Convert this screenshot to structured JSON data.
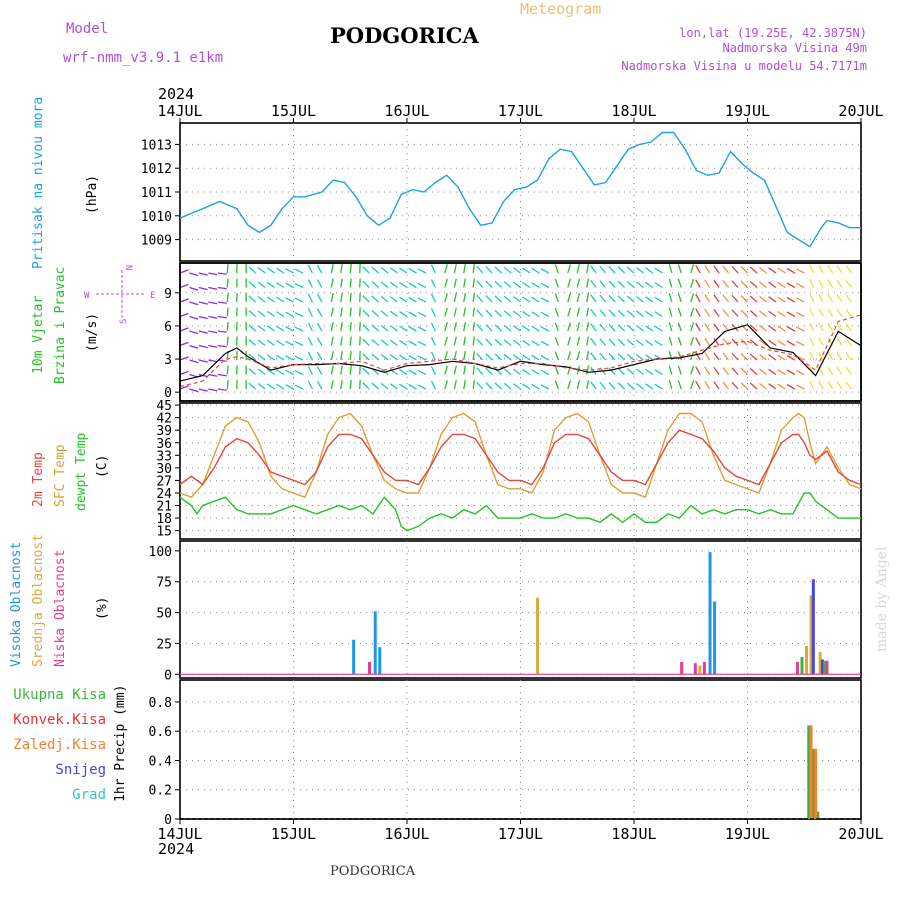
{
  "header": {
    "model_label": "Model",
    "model_value": "wrf-nmm_v3.9.1  e1km",
    "station": "PODGORICA",
    "product": "Meteogram",
    "coords": "lon,lat (19.25E, 42.3875N)",
    "elevation": "Nadmorska Visina 49m",
    "model_elevation": "Nadmorska Visina u modelu 54.7171m",
    "year": "2024",
    "footer_station": "PODGORICA",
    "credit": "made by Angel"
  },
  "colors": {
    "pressure": "#1ea0e6",
    "temp2m": "#e8453c",
    "sfc_temp": "#dca032",
    "dewpt": "#22c322",
    "high_cloud": "#1e96e6",
    "mid_cloud": "#dcaa3c",
    "low_cloud": "#e63c8c",
    "total_precip": "#3cb43c",
    "conv_precip": "#e63232",
    "frozen_precip": "#f08232",
    "snow": "#4646dc",
    "graupel": "#32c8b4"
  },
  "chart_data": [
    {
      "type": "line",
      "name": "pressure",
      "labels": [
        "Pritisak na nivou mora",
        "(hPa)"
      ],
      "x_ticks": [
        "14JUL",
        "15JUL",
        "16JUL",
        "17JUL",
        "18JUL",
        "19JUL",
        "20JUL"
      ],
      "y_ticks": [
        1009,
        1010,
        1011,
        1012,
        1013
      ],
      "ylim": [
        1008.1,
        1013.9
      ],
      "series": [
        {
          "color_key": "pressure",
          "x": [
            0,
            0.1,
            0.2,
            0.35,
            0.5,
            0.6,
            0.7,
            0.8,
            0.9,
            1.0,
            1.1,
            1.25,
            1.35,
            1.45,
            1.55,
            1.65,
            1.75,
            1.85,
            1.95,
            2.05,
            2.15,
            2.25,
            2.35,
            2.45,
            2.55,
            2.65,
            2.75,
            2.85,
            2.95,
            3.05,
            3.15,
            3.25,
            3.35,
            3.45,
            3.55,
            3.65,
            3.75,
            3.85,
            3.95,
            4.05,
            4.15,
            4.25,
            4.35,
            4.45,
            4.55,
            4.65,
            4.75,
            4.85,
            4.95,
            5.05,
            5.15,
            5.25,
            5.35,
            5.45,
            5.55,
            5.6,
            5.65,
            5.7,
            5.8,
            5.9,
            6.0
          ],
          "y": [
            1009.9,
            1010.1,
            1010.3,
            1010.6,
            1010.3,
            1009.6,
            1009.3,
            1009.6,
            1010.3,
            1010.8,
            1010.8,
            1011.0,
            1011.5,
            1011.4,
            1010.8,
            1010.0,
            1009.6,
            1009.9,
            1010.9,
            1011.1,
            1011.0,
            1011.4,
            1011.7,
            1011.2,
            1010.3,
            1009.6,
            1009.7,
            1010.6,
            1011.1,
            1011.2,
            1011.5,
            1012.4,
            1012.8,
            1012.7,
            1012.0,
            1011.3,
            1011.4,
            1012.1,
            1012.8,
            1013.0,
            1013.1,
            1013.5,
            1013.5,
            1012.8,
            1011.9,
            1011.7,
            1011.8,
            1012.7,
            1012.2,
            1011.8,
            1011.5,
            1010.4,
            1009.3,
            1009.0,
            1008.7,
            1009.1,
            1009.5,
            1009.8,
            1009.7,
            1009.5,
            1009.5
          ]
        }
      ]
    },
    {
      "type": "vector",
      "name": "wind",
      "labels": [
        "10m Vjetar",
        "Brzina i Pravac",
        "(m/s)"
      ],
      "compass": [
        "N",
        "S",
        "E",
        "W"
      ],
      "y_ticks": [
        0,
        3,
        6,
        9
      ],
      "ylim": [
        -0.8,
        11.7
      ],
      "speed_series": [
        {
          "color": "#000000",
          "x": [
            0,
            0.2,
            0.4,
            0.5,
            0.6,
            0.8,
            1.0,
            1.2,
            1.4,
            1.6,
            1.8,
            2.0,
            2.2,
            2.4,
            2.6,
            2.8,
            3.0,
            3.2,
            3.4,
            3.6,
            3.8,
            4.0,
            4.2,
            4.4,
            4.6,
            4.8,
            5.0,
            5.2,
            5.4,
            5.6,
            5.8,
            6.0
          ],
          "y": [
            1.0,
            1.5,
            3.5,
            4.0,
            3.2,
            2.0,
            2.5,
            2.5,
            2.6,
            2.4,
            1.8,
            2.4,
            2.5,
            2.8,
            2.6,
            2.0,
            2.8,
            2.5,
            2.3,
            1.8,
            2.0,
            2.5,
            3.0,
            3.1,
            3.5,
            5.5,
            6.1,
            4.0,
            3.6,
            1.5,
            5.5,
            4.2
          ]
        },
        {
          "color": "#e8453c",
          "x": [
            0,
            0.2,
            0.4,
            0.5,
            0.6,
            0.8,
            1.0,
            1.2,
            1.4,
            1.6,
            1.8,
            2.0,
            2.2,
            2.4,
            2.6,
            2.8,
            3.0,
            3.2,
            3.4,
            3.6,
            3.8,
            4.0,
            4.2,
            4.4,
            4.6,
            4.8,
            5.0,
            5.2,
            5.4,
            5.6,
            5.8,
            6.0
          ],
          "y": [
            0.5,
            1.0,
            3.0,
            3.2,
            3.0,
            2.2,
            2.5,
            2.6,
            2.6,
            2.8,
            2.0,
            2.6,
            2.8,
            3.0,
            2.6,
            2.2,
            2.6,
            2.6,
            2.2,
            2.0,
            2.2,
            2.8,
            3.0,
            3.2,
            3.8,
            4.4,
            4.6,
            3.8,
            3.4,
            2.0,
            6.4,
            7.0
          ]
        }
      ]
    },
    {
      "type": "line",
      "name": "temperature",
      "labels": [
        "2m Temp",
        "SFC Temp",
        "dewpt Temp",
        "(C)"
      ],
      "y_ticks": [
        15,
        18,
        21,
        24,
        27,
        30,
        33,
        36,
        39,
        42,
        45
      ],
      "ylim": [
        13.0,
        45.5
      ],
      "series": [
        {
          "color_key": "sfc_temp",
          "x": [
            0,
            0.1,
            0.2,
            0.3,
            0.4,
            0.5,
            0.6,
            0.7,
            0.8,
            0.9,
            1.0,
            1.1,
            1.2,
            1.3,
            1.4,
            1.5,
            1.6,
            1.7,
            1.8,
            1.9,
            2.0,
            2.1,
            2.2,
            2.3,
            2.4,
            2.5,
            2.6,
            2.7,
            2.8,
            2.9,
            3.0,
            3.1,
            3.2,
            3.3,
            3.4,
            3.5,
            3.6,
            3.7,
            3.8,
            3.9,
            4.0,
            4.1,
            4.2,
            4.3,
            4.4,
            4.5,
            4.6,
            4.7,
            4.8,
            4.9,
            5.0,
            5.1,
            5.2,
            5.3,
            5.4,
            5.45,
            5.5,
            5.55,
            5.6,
            5.7,
            5.8,
            5.9,
            6.0
          ],
          "y": [
            24,
            23,
            26,
            33,
            40,
            42,
            41,
            36,
            28,
            25,
            24,
            23,
            29,
            38,
            42,
            43,
            40,
            33,
            27,
            25,
            24,
            24,
            30,
            38,
            42,
            43,
            41,
            33,
            26,
            25,
            25,
            24,
            29,
            39,
            42,
            43,
            41,
            33,
            26,
            24,
            24,
            23,
            31,
            39,
            43,
            43,
            41,
            33,
            27,
            26,
            25,
            24,
            31,
            39,
            42,
            43,
            42,
            36,
            31,
            35,
            30,
            26,
            25
          ]
        },
        {
          "color_key": "temp2m",
          "x": [
            0,
            0.1,
            0.2,
            0.3,
            0.4,
            0.5,
            0.6,
            0.7,
            0.8,
            0.9,
            1.0,
            1.1,
            1.2,
            1.3,
            1.4,
            1.5,
            1.6,
            1.7,
            1.8,
            1.9,
            2.0,
            2.1,
            2.2,
            2.3,
            2.4,
            2.5,
            2.6,
            2.7,
            2.8,
            2.9,
            3.0,
            3.1,
            3.2,
            3.3,
            3.4,
            3.5,
            3.6,
            3.7,
            3.8,
            3.9,
            4.0,
            4.1,
            4.2,
            4.3,
            4.4,
            4.5,
            4.6,
            4.7,
            4.8,
            4.9,
            5.0,
            5.1,
            5.2,
            5.3,
            5.4,
            5.45,
            5.5,
            5.55,
            5.6,
            5.7,
            5.8,
            5.9,
            6.0
          ],
          "y": [
            26,
            28,
            26,
            30,
            35,
            37,
            36,
            33,
            29,
            28,
            27,
            26,
            29,
            35,
            38,
            38,
            37,
            33,
            29,
            27,
            27,
            26,
            30,
            35,
            38,
            38,
            37,
            33,
            29,
            27,
            27,
            26,
            30,
            36,
            38,
            38,
            37,
            33,
            29,
            27,
            27,
            26,
            31,
            36,
            39,
            38,
            37,
            34,
            30,
            28,
            27,
            26,
            31,
            36,
            38,
            38,
            36,
            33,
            32,
            34,
            29,
            27,
            26
          ]
        },
        {
          "color_key": "dewpt",
          "x": [
            0,
            0.1,
            0.15,
            0.2,
            0.3,
            0.4,
            0.5,
            0.6,
            0.7,
            0.8,
            0.9,
            1.0,
            1.1,
            1.2,
            1.3,
            1.4,
            1.5,
            1.6,
            1.7,
            1.8,
            1.9,
            1.95,
            2.0,
            2.1,
            2.2,
            2.3,
            2.4,
            2.5,
            2.6,
            2.7,
            2.8,
            2.9,
            3.0,
            3.1,
            3.2,
            3.3,
            3.4,
            3.5,
            3.6,
            3.7,
            3.8,
            3.9,
            4.0,
            4.1,
            4.2,
            4.3,
            4.4,
            4.5,
            4.6,
            4.7,
            4.8,
            4.9,
            5.0,
            5.1,
            5.2,
            5.3,
            5.4,
            5.5,
            5.55,
            5.6,
            5.7,
            5.8,
            5.9,
            6.0
          ],
          "y": [
            23,
            21,
            19,
            21,
            22,
            23,
            20,
            19,
            19,
            19,
            20,
            21,
            20,
            19,
            20,
            21,
            20,
            21,
            19,
            23,
            20,
            16,
            15,
            16,
            18,
            19,
            18,
            20,
            19,
            21,
            18,
            18,
            18,
            19,
            18,
            18,
            19,
            18,
            18,
            17,
            19,
            17,
            19,
            17,
            17,
            19,
            18,
            21,
            19,
            20,
            19,
            20,
            20,
            19,
            20,
            19,
            19,
            24,
            24,
            22,
            20,
            18,
            18,
            18
          ]
        }
      ]
    },
    {
      "type": "bar",
      "name": "cloud cover",
      "labels": [
        "Visoka Oblacnost",
        "Srednja Oblacnost",
        "Niska Oblacnost",
        "(%)"
      ],
      "y_ticks": [
        0,
        25,
        50,
        75,
        100
      ],
      "ylim": [
        -3,
        108
      ],
      "series": [
        {
          "color_key": "high_cloud",
          "x": [
            1.53,
            1.72,
            1.76,
            4.67,
            4.71,
            5.56
          ],
          "values": [
            28,
            51,
            22,
            99,
            59,
            12
          ]
        },
        {
          "color_key": "mid_cloud",
          "x": [
            3.15,
            4.58,
            5.52,
            5.56,
            5.64
          ],
          "values": [
            62,
            7,
            23,
            64,
            18
          ]
        },
        {
          "color_key": "low_cloud",
          "x": [
            1.67,
            4.42,
            4.54,
            4.62,
            5.44,
            5.7
          ],
          "values": [
            10,
            10,
            9,
            10,
            10,
            11
          ]
        },
        {
          "color": "#4646dc",
          "x": [
            5.58,
            5.66
          ],
          "values": [
            77,
            12
          ]
        },
        {
          "color": "#3cb43c",
          "x": [
            5.48,
            5.68
          ],
          "values": [
            14,
            11
          ]
        }
      ]
    },
    {
      "type": "bar",
      "name": "precipitation",
      "labels": [
        "Ukupna Kisa",
        "Konvek.Kisa",
        "Zaledj.Kisa",
        "Snijeg",
        "Grad",
        "1hr Precip (mm)"
      ],
      "y_ticks": [
        0,
        0.2,
        0.4,
        0.6,
        0.8
      ],
      "ylim": [
        0,
        0.95
      ],
      "x_ticks": [
        "14JUL",
        "15JUL",
        "16JUL",
        "17JUL",
        "18JUL",
        "19JUL",
        "20JUL"
      ],
      "series": [
        {
          "color_key": "total_precip",
          "x": [
            5.54,
            5.58,
            5.62
          ],
          "values": [
            0.64,
            0.48,
            0.05
          ]
        },
        {
          "color_key": "frozen_precip",
          "x": [
            5.56,
            5.6
          ],
          "values": [
            0.64,
            0.48
          ]
        }
      ]
    }
  ]
}
